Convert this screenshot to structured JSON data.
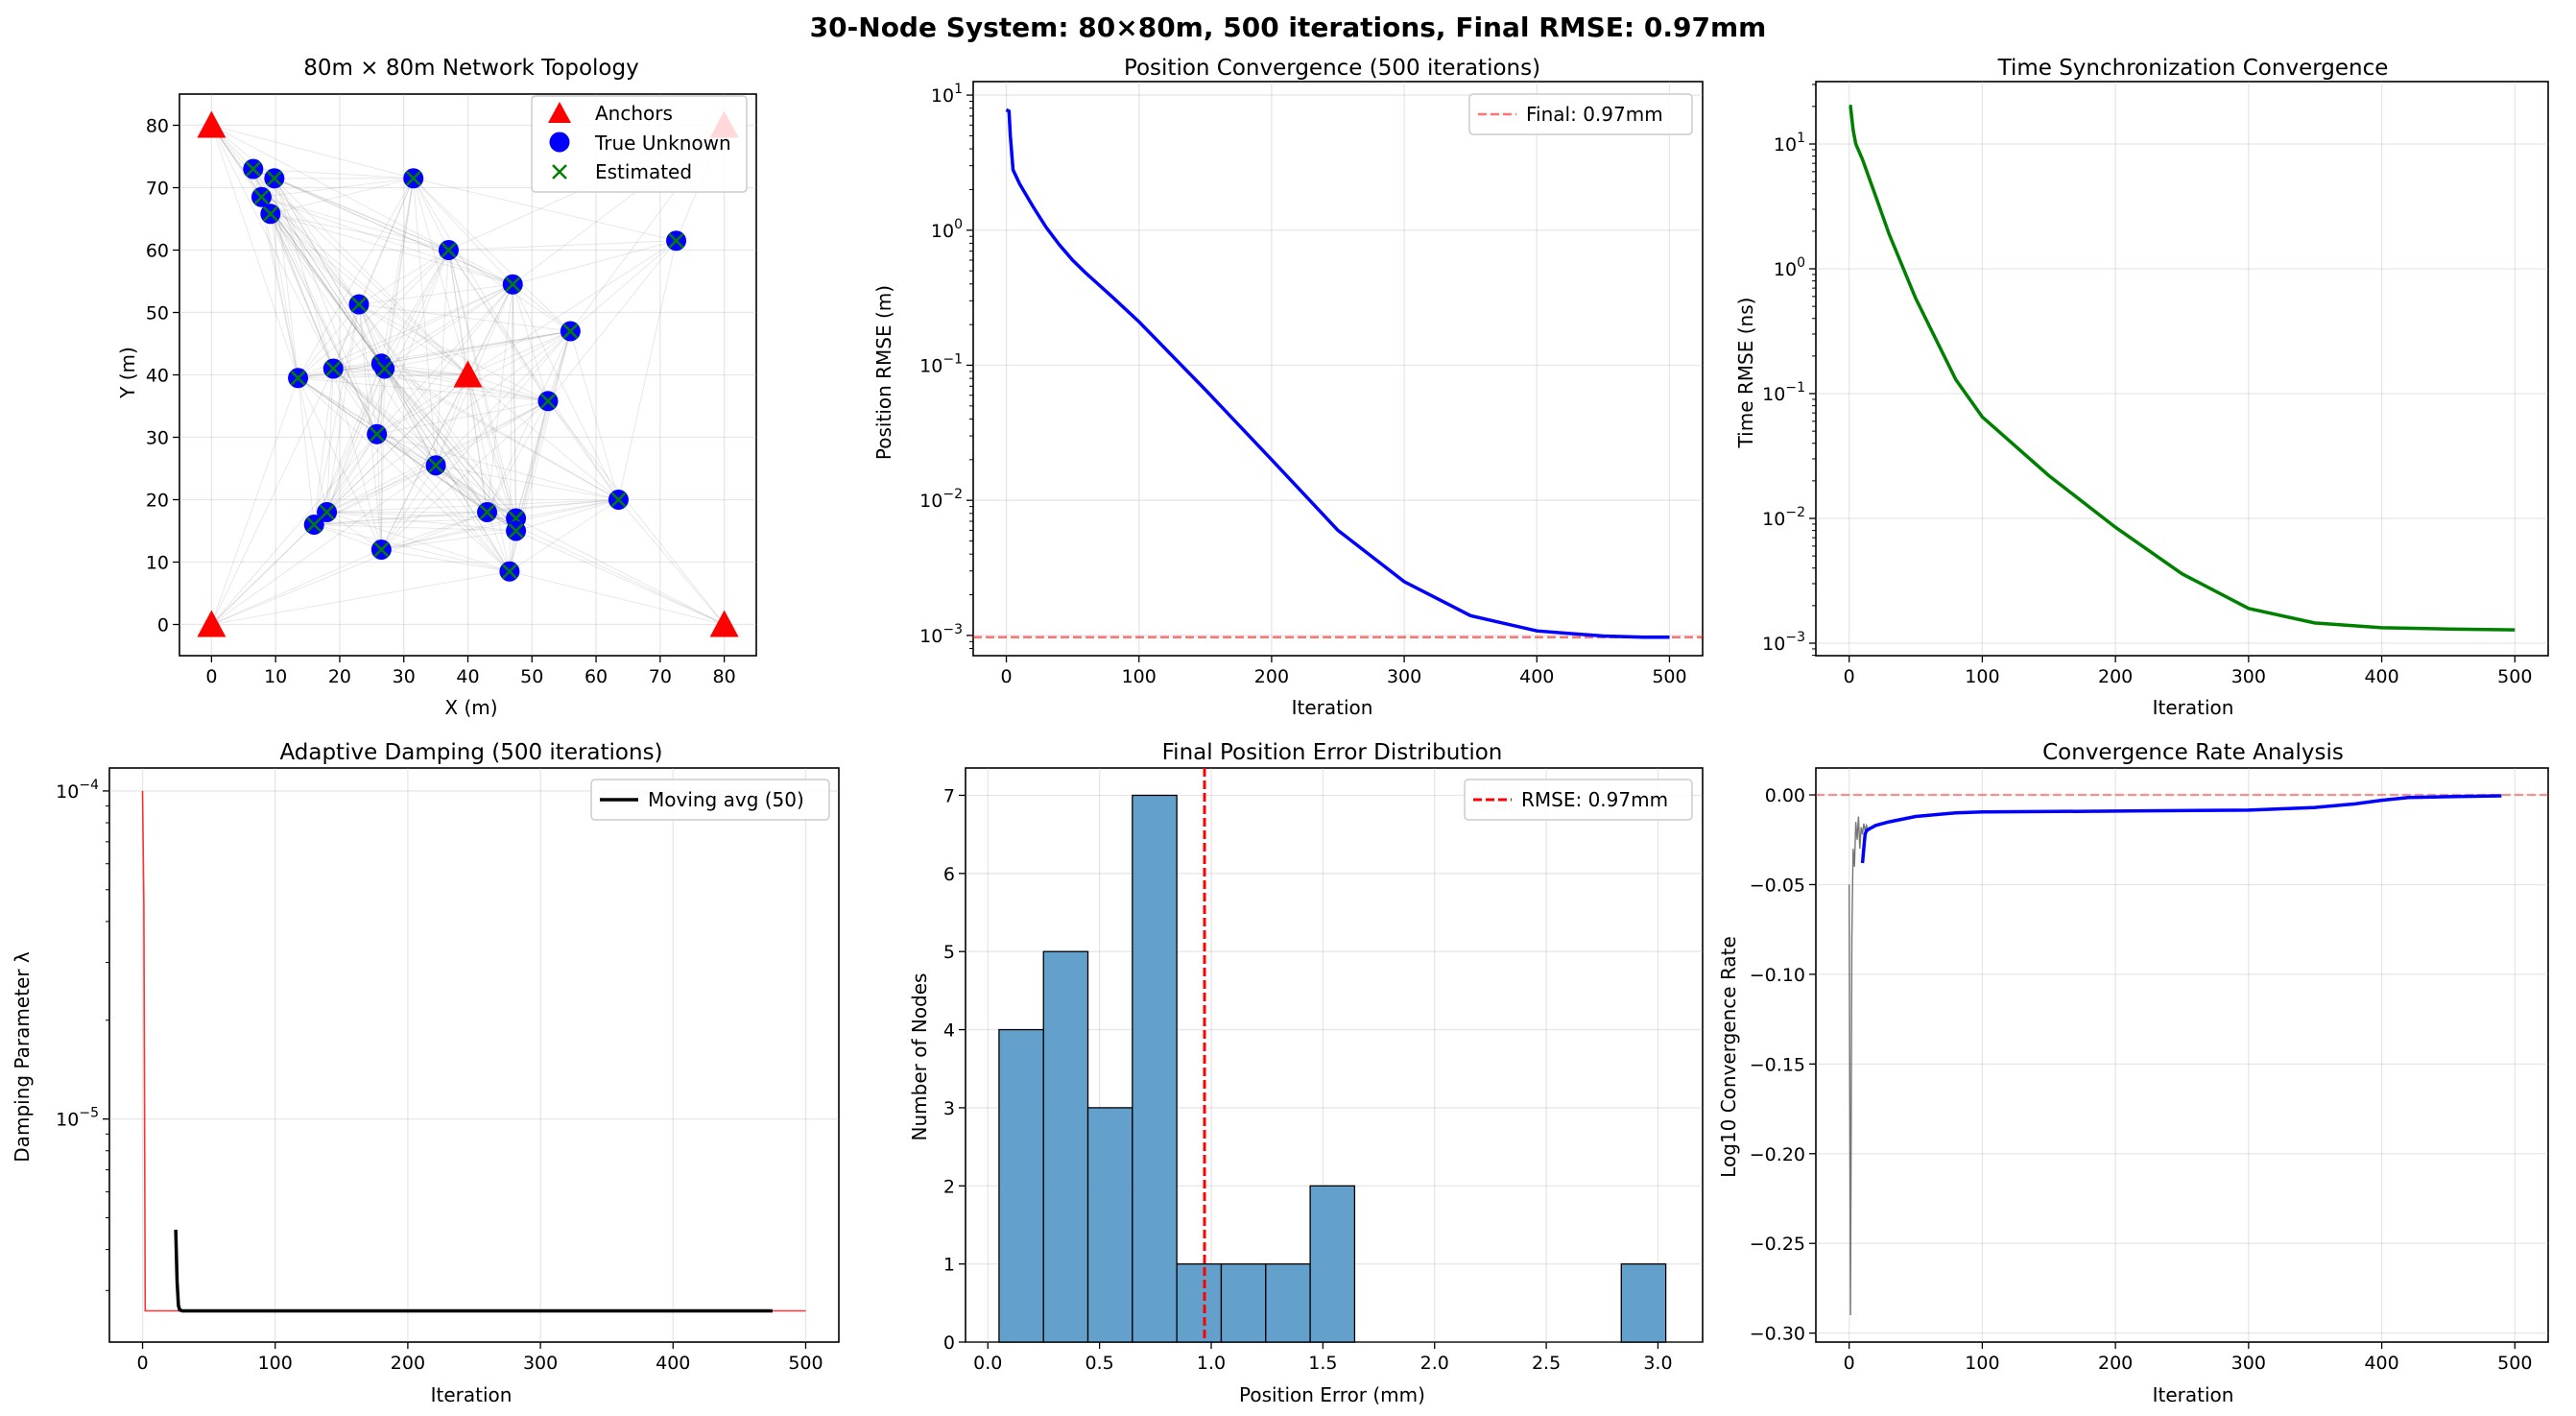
{
  "figure": {
    "suptitle": "30-Node System: 80×80m, 500 iterations, Final RMSE: 0.97mm"
  },
  "colors": {
    "anchor": "#ff0000",
    "unknown": "#0000ff",
    "estimated": "#008000",
    "position_line": "#0000ff",
    "time_line": "#008000",
    "damping_raw": "#ff0000",
    "moving_avg": "#000000",
    "hist_fill": "#5b9bc9",
    "rmse_line": "#ff0000"
  },
  "chart_data": [
    {
      "id": "topology",
      "type": "scatter",
      "title": "80m × 80m Network Topology",
      "xlabel": "X (m)",
      "ylabel": "Y (m)",
      "xlim": [
        -5,
        85
      ],
      "ylim": [
        -5,
        85
      ],
      "xticks": [
        0,
        10,
        20,
        30,
        40,
        50,
        60,
        70,
        80
      ],
      "yticks": [
        0,
        10,
        20,
        30,
        40,
        50,
        60,
        70,
        80
      ],
      "grid": true,
      "legend_position": "top-right",
      "legend": [
        "Anchors",
        "True Unknown",
        "Estimated"
      ],
      "anchors": [
        [
          0,
          0
        ],
        [
          80,
          0
        ],
        [
          0,
          80
        ],
        [
          80,
          80
        ],
        [
          40,
          40
        ]
      ],
      "unknowns": [
        [
          6.5,
          73
        ],
        [
          9.8,
          71.5
        ],
        [
          7.8,
          68.5
        ],
        [
          9.2,
          65.8
        ],
        [
          31.5,
          71.5
        ],
        [
          37,
          60
        ],
        [
          47,
          54.5
        ],
        [
          72.5,
          61.5
        ],
        [
          23,
          51.3
        ],
        [
          56,
          47
        ],
        [
          13.5,
          39.5
        ],
        [
          19,
          41
        ],
        [
          26.5,
          41.8
        ],
        [
          27,
          41
        ],
        [
          52.5,
          35.8
        ],
        [
          25.8,
          30.5
        ],
        [
          35,
          25.5
        ],
        [
          63.5,
          20
        ],
        [
          43,
          18
        ],
        [
          47.5,
          17
        ],
        [
          47.5,
          15
        ],
        [
          18,
          18
        ],
        [
          16,
          16
        ],
        [
          26.5,
          12
        ],
        [
          46.5,
          8.5
        ]
      ]
    },
    {
      "id": "position",
      "type": "line",
      "title": "Position Convergence (500 iterations)",
      "xlabel": "Iteration",
      "ylabel": "Position RMSE (m)",
      "xlim": [
        -25,
        525
      ],
      "ylim_log10": [
        -3.15,
        1.1
      ],
      "xticks": [
        0,
        100,
        200,
        300,
        400,
        500
      ],
      "yticks_log10": [
        1,
        0,
        -1,
        -2,
        -3
      ],
      "scale_y": "log",
      "grid": true,
      "legend_position": "top-right",
      "reference_line": {
        "name": "Final: 0.97mm",
        "y": 0.00097,
        "style": "dashed"
      },
      "series": [
        {
          "x": [
            0,
            2,
            3,
            5,
            10,
            20,
            30,
            40,
            50,
            60,
            80,
            100,
            150,
            200,
            250,
            300,
            350,
            400,
            450,
            480,
            500
          ],
          "y": [
            7.8,
            7.6,
            5.0,
            2.8,
            2.2,
            1.5,
            1.05,
            0.78,
            0.6,
            0.48,
            0.32,
            0.21,
            0.066,
            0.02,
            0.006,
            0.0025,
            0.0014,
            0.00108,
            0.00099,
            0.00097,
            0.00097
          ]
        }
      ]
    },
    {
      "id": "time",
      "type": "line",
      "title": "Time Synchronization Convergence",
      "xlabel": "Iteration",
      "ylabel": "Time RMSE (ns)",
      "xlim": [
        -25,
        525
      ],
      "ylim_log10": [
        -3.1,
        1.5
      ],
      "xticks": [
        0,
        100,
        200,
        300,
        400,
        500
      ],
      "yticks_log10": [
        1,
        0,
        -1,
        -2,
        -3
      ],
      "scale_y": "log",
      "grid": true,
      "series": [
        {
          "x": [
            0,
            1,
            3,
            5,
            10,
            20,
            30,
            50,
            80,
            100,
            150,
            200,
            250,
            300,
            350,
            400,
            450,
            500
          ],
          "y": [
            20,
            20,
            13,
            10,
            7.5,
            3.8,
            1.9,
            0.58,
            0.13,
            0.065,
            0.022,
            0.0085,
            0.0036,
            0.0019,
            0.00145,
            0.00133,
            0.0013,
            0.00128
          ]
        }
      ]
    },
    {
      "id": "damping",
      "type": "line",
      "title": "Adaptive Damping (500 iterations)",
      "xlabel": "Iteration",
      "ylabel": "Damping Parameter λ",
      "xlim": [
        -25,
        525
      ],
      "ylim_log10": [
        -5.68,
        -3.93
      ],
      "xticks": [
        0,
        100,
        200,
        300,
        400,
        500
      ],
      "yticks_log10": [
        -4,
        -5
      ],
      "scale_y": "log",
      "grid": true,
      "legend_position": "top-right",
      "series": [
        {
          "name": "",
          "style": "raw",
          "x": [
            0,
            1,
            2,
            500
          ],
          "y": [
            0.0001,
            4.5e-05,
            2.6e-06,
            2.6e-06
          ]
        },
        {
          "name": "Moving avg (50)",
          "style": "avg",
          "x": [
            25,
            26,
            27,
            28,
            30,
            475
          ],
          "y": [
            4.6e-06,
            3.2e-06,
            2.7e-06,
            2.62e-06,
            2.6e-06,
            2.6e-06
          ]
        }
      ]
    },
    {
      "id": "histogram",
      "type": "bar",
      "title": "Final Position Error Distribution",
      "xlabel": "Position Error (mm)",
      "ylabel": "Number of Nodes",
      "xlim": [
        -0.1,
        3.2
      ],
      "ylim": [
        0,
        7.35
      ],
      "xticks": [
        0.0,
        0.5,
        1.0,
        1.5,
        2.0,
        2.5,
        3.0
      ],
      "yticks": [
        0,
        1,
        2,
        3,
        4,
        5,
        6,
        7
      ],
      "grid": true,
      "legend_position": "top-right",
      "reference_line": {
        "name": "RMSE: 0.97mm",
        "x": 0.97,
        "style": "dashed"
      },
      "bin_edges": [
        0.05,
        0.249,
        0.448,
        0.647,
        0.846,
        1.045,
        1.244,
        1.443,
        1.642,
        1.841,
        2.04,
        2.239,
        2.438,
        2.637,
        2.836,
        3.035
      ],
      "values": [
        4,
        5,
        3,
        7,
        1,
        1,
        1,
        2,
        0,
        0,
        0,
        0,
        0,
        0,
        1
      ]
    },
    {
      "id": "rate",
      "type": "line",
      "title": "Convergence Rate Analysis",
      "xlabel": "Iteration",
      "ylabel": "Log10 Convergence Rate",
      "xlim": [
        -25,
        525
      ],
      "ylim": [
        -0.305,
        0.015
      ],
      "xticks": [
        0,
        100,
        200,
        300,
        400,
        500
      ],
      "yticks": [
        0.0,
        -0.05,
        -0.1,
        -0.15,
        -0.2,
        -0.25,
        -0.3
      ],
      "grid": true,
      "reference_line": {
        "y": 0,
        "style": "dashed"
      },
      "series": [
        {
          "style": "raw",
          "x": [
            0,
            1,
            2,
            3,
            4,
            5,
            6,
            7,
            8,
            9,
            10,
            11,
            12,
            13,
            14
          ],
          "y": [
            -0.05,
            -0.29,
            -0.08,
            -0.03,
            -0.04,
            -0.015,
            -0.025,
            -0.012,
            -0.03,
            -0.018,
            -0.022,
            -0.016,
            -0.02,
            -0.017,
            -0.019
          ]
        },
        {
          "style": "avg",
          "x": [
            10,
            11,
            12,
            13,
            15,
            20,
            30,
            50,
            80,
            100,
            200,
            300,
            350,
            380,
            400,
            420,
            450,
            490
          ],
          "y": [
            -0.038,
            -0.03,
            -0.022,
            -0.02,
            -0.019,
            -0.017,
            -0.015,
            -0.012,
            -0.01,
            -0.0095,
            -0.009,
            -0.0085,
            -0.007,
            -0.005,
            -0.003,
            -0.0015,
            -0.001,
            -0.0005
          ]
        }
      ]
    }
  ],
  "ticklabels": {
    "topology_x": [
      "0",
      "10",
      "20",
      "30",
      "40",
      "50",
      "60",
      "70",
      "80"
    ],
    "topology_y": [
      "0",
      "10",
      "20",
      "30",
      "40",
      "50",
      "60",
      "70",
      "80"
    ],
    "iteration_x": [
      "0",
      "100",
      "200",
      "300",
      "400",
      "500"
    ],
    "hist_x": [
      "0.0",
      "0.5",
      "1.0",
      "1.5",
      "2.0",
      "2.5",
      "3.0"
    ],
    "hist_y": [
      "0",
      "1",
      "2",
      "3",
      "4",
      "5",
      "6",
      "7"
    ],
    "rate_y": [
      "0.00",
      "−0.05",
      "−0.10",
      "−0.15",
      "−0.20",
      "−0.25",
      "−0.30"
    ]
  }
}
